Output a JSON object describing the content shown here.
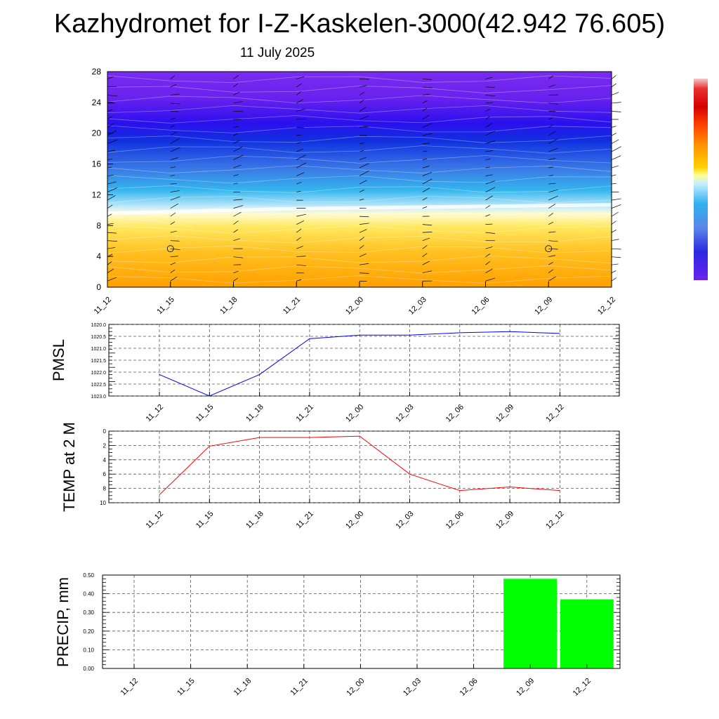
{
  "header": {
    "title": "Kazhydromet for I-Z-Kaskelen-3000(42.942 76.605)",
    "date": "11 July 2025"
  },
  "colors": {
    "pmsl_line": "#0000ff",
    "temp_line": "#ff0000",
    "precip_bar": "#00ff00",
    "grid": "#555555"
  },
  "chart_data": [
    {
      "type": "heatmap",
      "title": "",
      "xlabel": "",
      "ylabel": "",
      "x_ticks": [
        "11_12",
        "11_15",
        "11_18",
        "11_21",
        "12_00",
        "12_03",
        "12_06",
        "12_09",
        "12_12"
      ],
      "y_ticks": [
        "0",
        "4",
        "8",
        "12",
        "16",
        "20",
        "24",
        "28"
      ],
      "ylim": [
        0,
        28
      ],
      "freezing_level_y": [
        9.6,
        9.8,
        10.0,
        10.2,
        10.3,
        10.4,
        10.5,
        10.6,
        10.7
      ],
      "color_scale": "blue-purple aloft through cyan/white to yellow-orange near surface",
      "wind_barbs": true
    },
    {
      "type": "line",
      "ylabel": "PMSL",
      "categories": [
        "11_12",
        "11_15",
        "11_18",
        "11_21",
        "12_00",
        "12_03",
        "12_06",
        "12_09",
        "12_12"
      ],
      "values": [
        1022.1,
        1023.0,
        1022.1,
        1020.6,
        1020.45,
        1020.45,
        1020.35,
        1020.3,
        1020.38
      ],
      "ylim": [
        1020.0,
        1023.0
      ],
      "y_ticks": [
        "1020.0",
        "1020.5",
        "1021.0",
        "1021.5",
        "1022.0",
        "1022.5",
        "1023.0"
      ],
      "grid": true
    },
    {
      "type": "line",
      "ylabel": "TEMP at 2 M",
      "categories": [
        "11_12",
        "11_15",
        "11_18",
        "11_21",
        "12_00",
        "12_03",
        "12_06",
        "12_09",
        "12_12"
      ],
      "values": [
        8.9,
        2.1,
        0.9,
        0.9,
        0.7,
        6.0,
        8.3,
        7.8,
        8.3
      ],
      "ylim": [
        0,
        10
      ],
      "y_ticks": [
        "0",
        "2",
        "4",
        "6",
        "8",
        "10"
      ],
      "grid": true
    },
    {
      "type": "bar",
      "ylabel": "PRECIP, mm",
      "categories": [
        "11_12",
        "11_15",
        "11_18",
        "11_21",
        "12_00",
        "12_03",
        "12_06",
        "12_09",
        "12_12"
      ],
      "values": [
        0,
        0,
        0,
        0,
        0,
        0,
        0,
        0.48,
        0.37
      ],
      "ylim": [
        0,
        0.5
      ],
      "y_ticks": [
        "0.00",
        "0.10",
        "0.20",
        "0.30",
        "0.40",
        "0.50"
      ],
      "grid": true
    }
  ]
}
